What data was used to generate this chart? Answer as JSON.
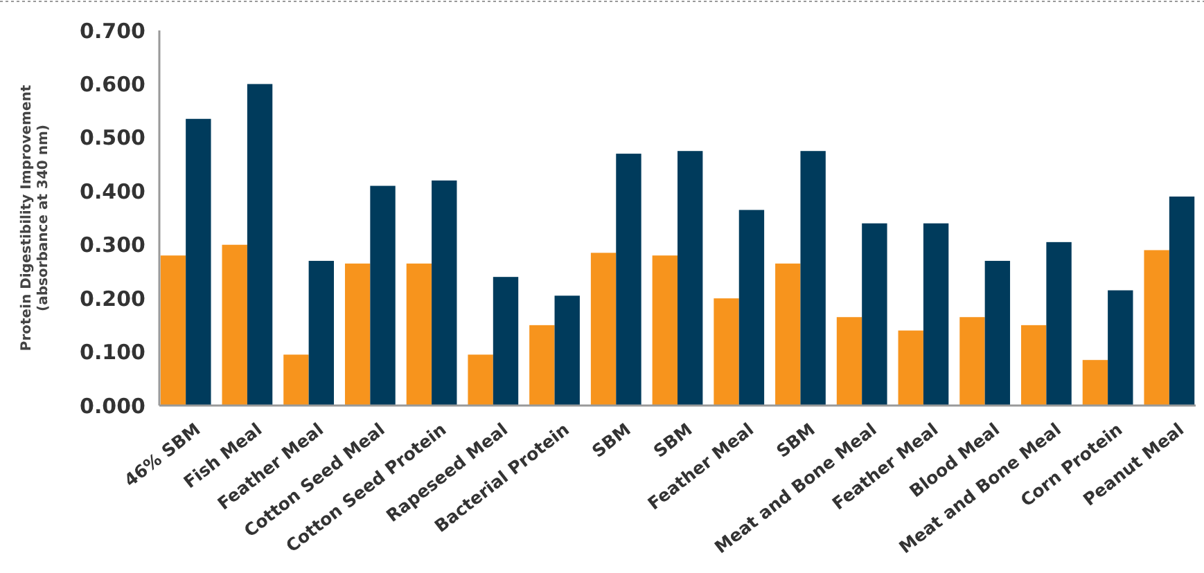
{
  "chart_data": {
    "type": "bar",
    "ylabel": "Protein Digestibility Improvement\n(absorbance at 340 nm)",
    "categories": [
      "46% SBM",
      "Fish Meal",
      "Feather Meal",
      "Cotton Seed Meal",
      "Cotton Seed Protein",
      "Rapeseed Meal",
      "Bacterial Protein",
      "SBM",
      "SBM",
      "Feather Meal",
      "SBM",
      "Meat and Bone Meal",
      "Feather Meal",
      "Blood Meal",
      "Meat and Bone Meal",
      "Corn Protein",
      "Peanut Meal"
    ],
    "series": [
      {
        "color": "#f7941d",
        "values": [
          0.28,
          0.3,
          0.095,
          0.265,
          0.265,
          0.095,
          0.15,
          0.285,
          0.28,
          0.2,
          0.265,
          0.165,
          0.14,
          0.165,
          0.15,
          0.085,
          0.29
        ]
      },
      {
        "color": "#003b5c",
        "values": [
          0.535,
          0.6,
          0.27,
          0.41,
          0.42,
          0.24,
          0.205,
          0.47,
          0.475,
          0.365,
          0.475,
          0.34,
          0.34,
          0.27,
          0.305,
          0.215,
          0.39
        ]
      }
    ],
    "ylim": [
      0,
      0.7
    ],
    "yticks": [
      {
        "value": 0,
        "label": "0.000"
      },
      {
        "value": 0.1,
        "label": "0.100"
      },
      {
        "value": 0.2,
        "label": "0.200"
      },
      {
        "value": 0.3,
        "label": "0.300"
      },
      {
        "value": 0.4,
        "label": "0.400"
      },
      {
        "value": 0.5,
        "label": "0.500"
      },
      {
        "value": 0.6,
        "label": "0.600"
      },
      {
        "value": 0.7,
        "label": "0.700"
      }
    ],
    "grid": false
  }
}
